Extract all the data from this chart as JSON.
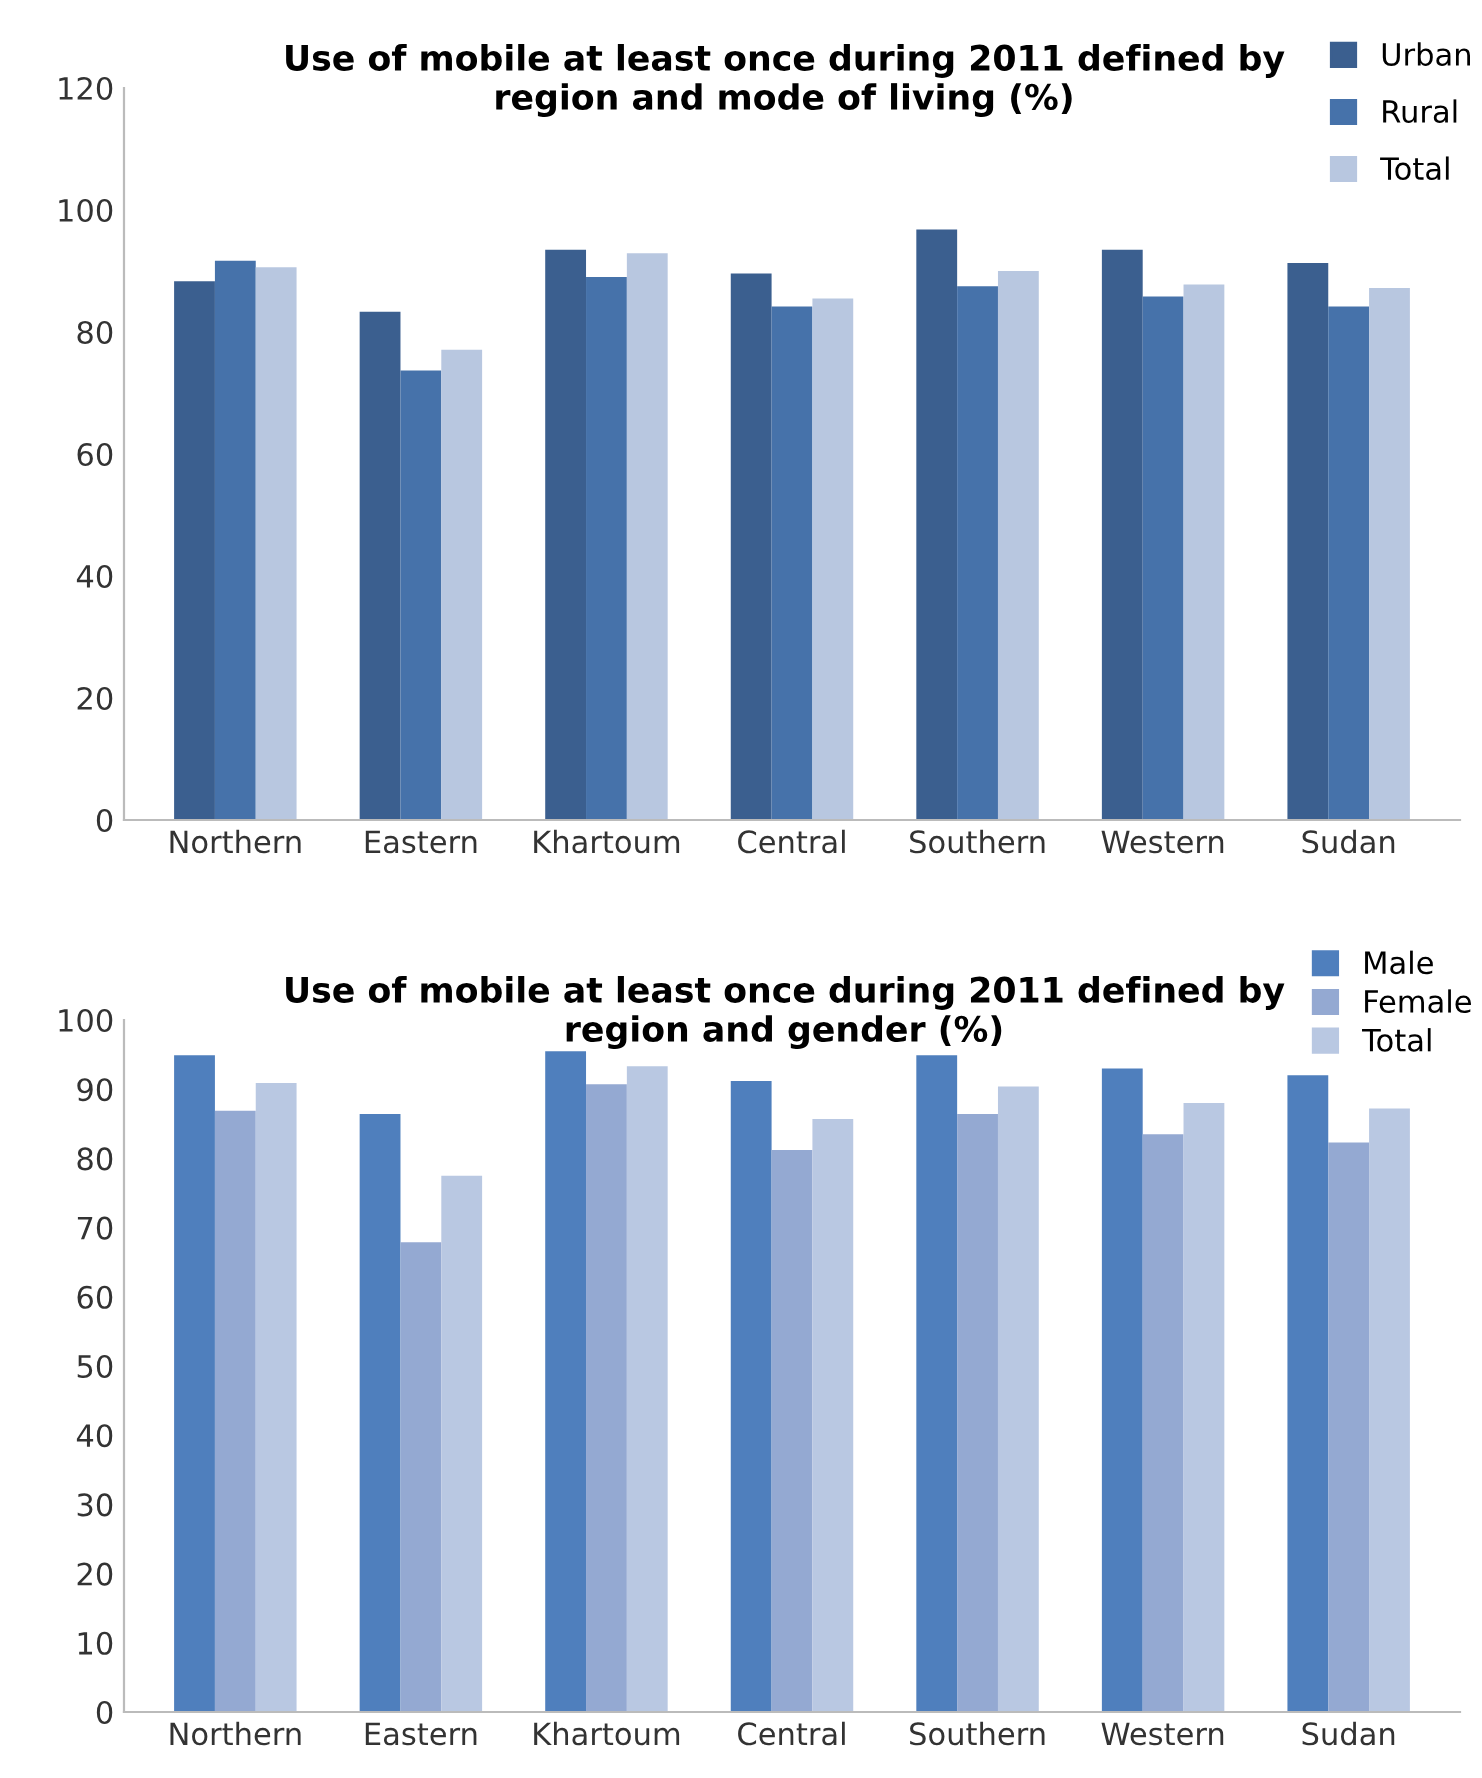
{
  "chart_data": [
    {
      "type": "bar",
      "title": "Use of mobile at least once during 2011 defined by\nregion and mode of living (%)",
      "categories": [
        "Northern",
        "Eastern",
        "Khartoum",
        "Central",
        "Southern",
        "Western",
        "Sudan"
      ],
      "series": [
        {
          "name": "Urban",
          "color": "#3b5f8f",
          "values": [
            88.3,
            83.3,
            93.5,
            89.6,
            96.8,
            93.5,
            91.3
          ]
        },
        {
          "name": "Rural",
          "color": "#4672aa",
          "values": [
            91.7,
            73.7,
            89.0,
            84.2,
            87.5,
            85.8,
            84.2
          ]
        },
        {
          "name": "Total",
          "color": "#b8c7e0",
          "values": [
            90.6,
            77.1,
            92.9,
            85.5,
            90.0,
            87.8,
            87.2
          ]
        }
      ],
      "ylim": [
        0,
        120
      ],
      "yticks": [
        0,
        20,
        40,
        60,
        80,
        100,
        120
      ],
      "grid": false,
      "legend": "top right"
    },
    {
      "type": "bar",
      "title": "Use of mobile at least once during 2011 defined by\nregion and gender (%)",
      "categories": [
        "Northern",
        "Eastern",
        "Khartoum",
        "Central",
        "Southern",
        "Western",
        "Sudan"
      ],
      "series": [
        {
          "name": "Male",
          "color": "#4f7fbd",
          "values": [
            94.9,
            86.4,
            95.5,
            91.2,
            94.9,
            93.0,
            92.0
          ]
        },
        {
          "name": "Female",
          "color": "#94a9d2",
          "values": [
            86.9,
            67.9,
            90.7,
            81.2,
            86.4,
            83.5,
            82.3
          ]
        },
        {
          "name": "Total",
          "color": "#b9c8e2",
          "values": [
            90.9,
            77.5,
            93.3,
            85.7,
            90.4,
            88.0,
            87.2
          ]
        }
      ],
      "ylim": [
        0,
        100
      ],
      "yticks": [
        0,
        10,
        20,
        30,
        40,
        50,
        60,
        70,
        80,
        90,
        100
      ],
      "grid": false,
      "legend": "top right"
    }
  ]
}
